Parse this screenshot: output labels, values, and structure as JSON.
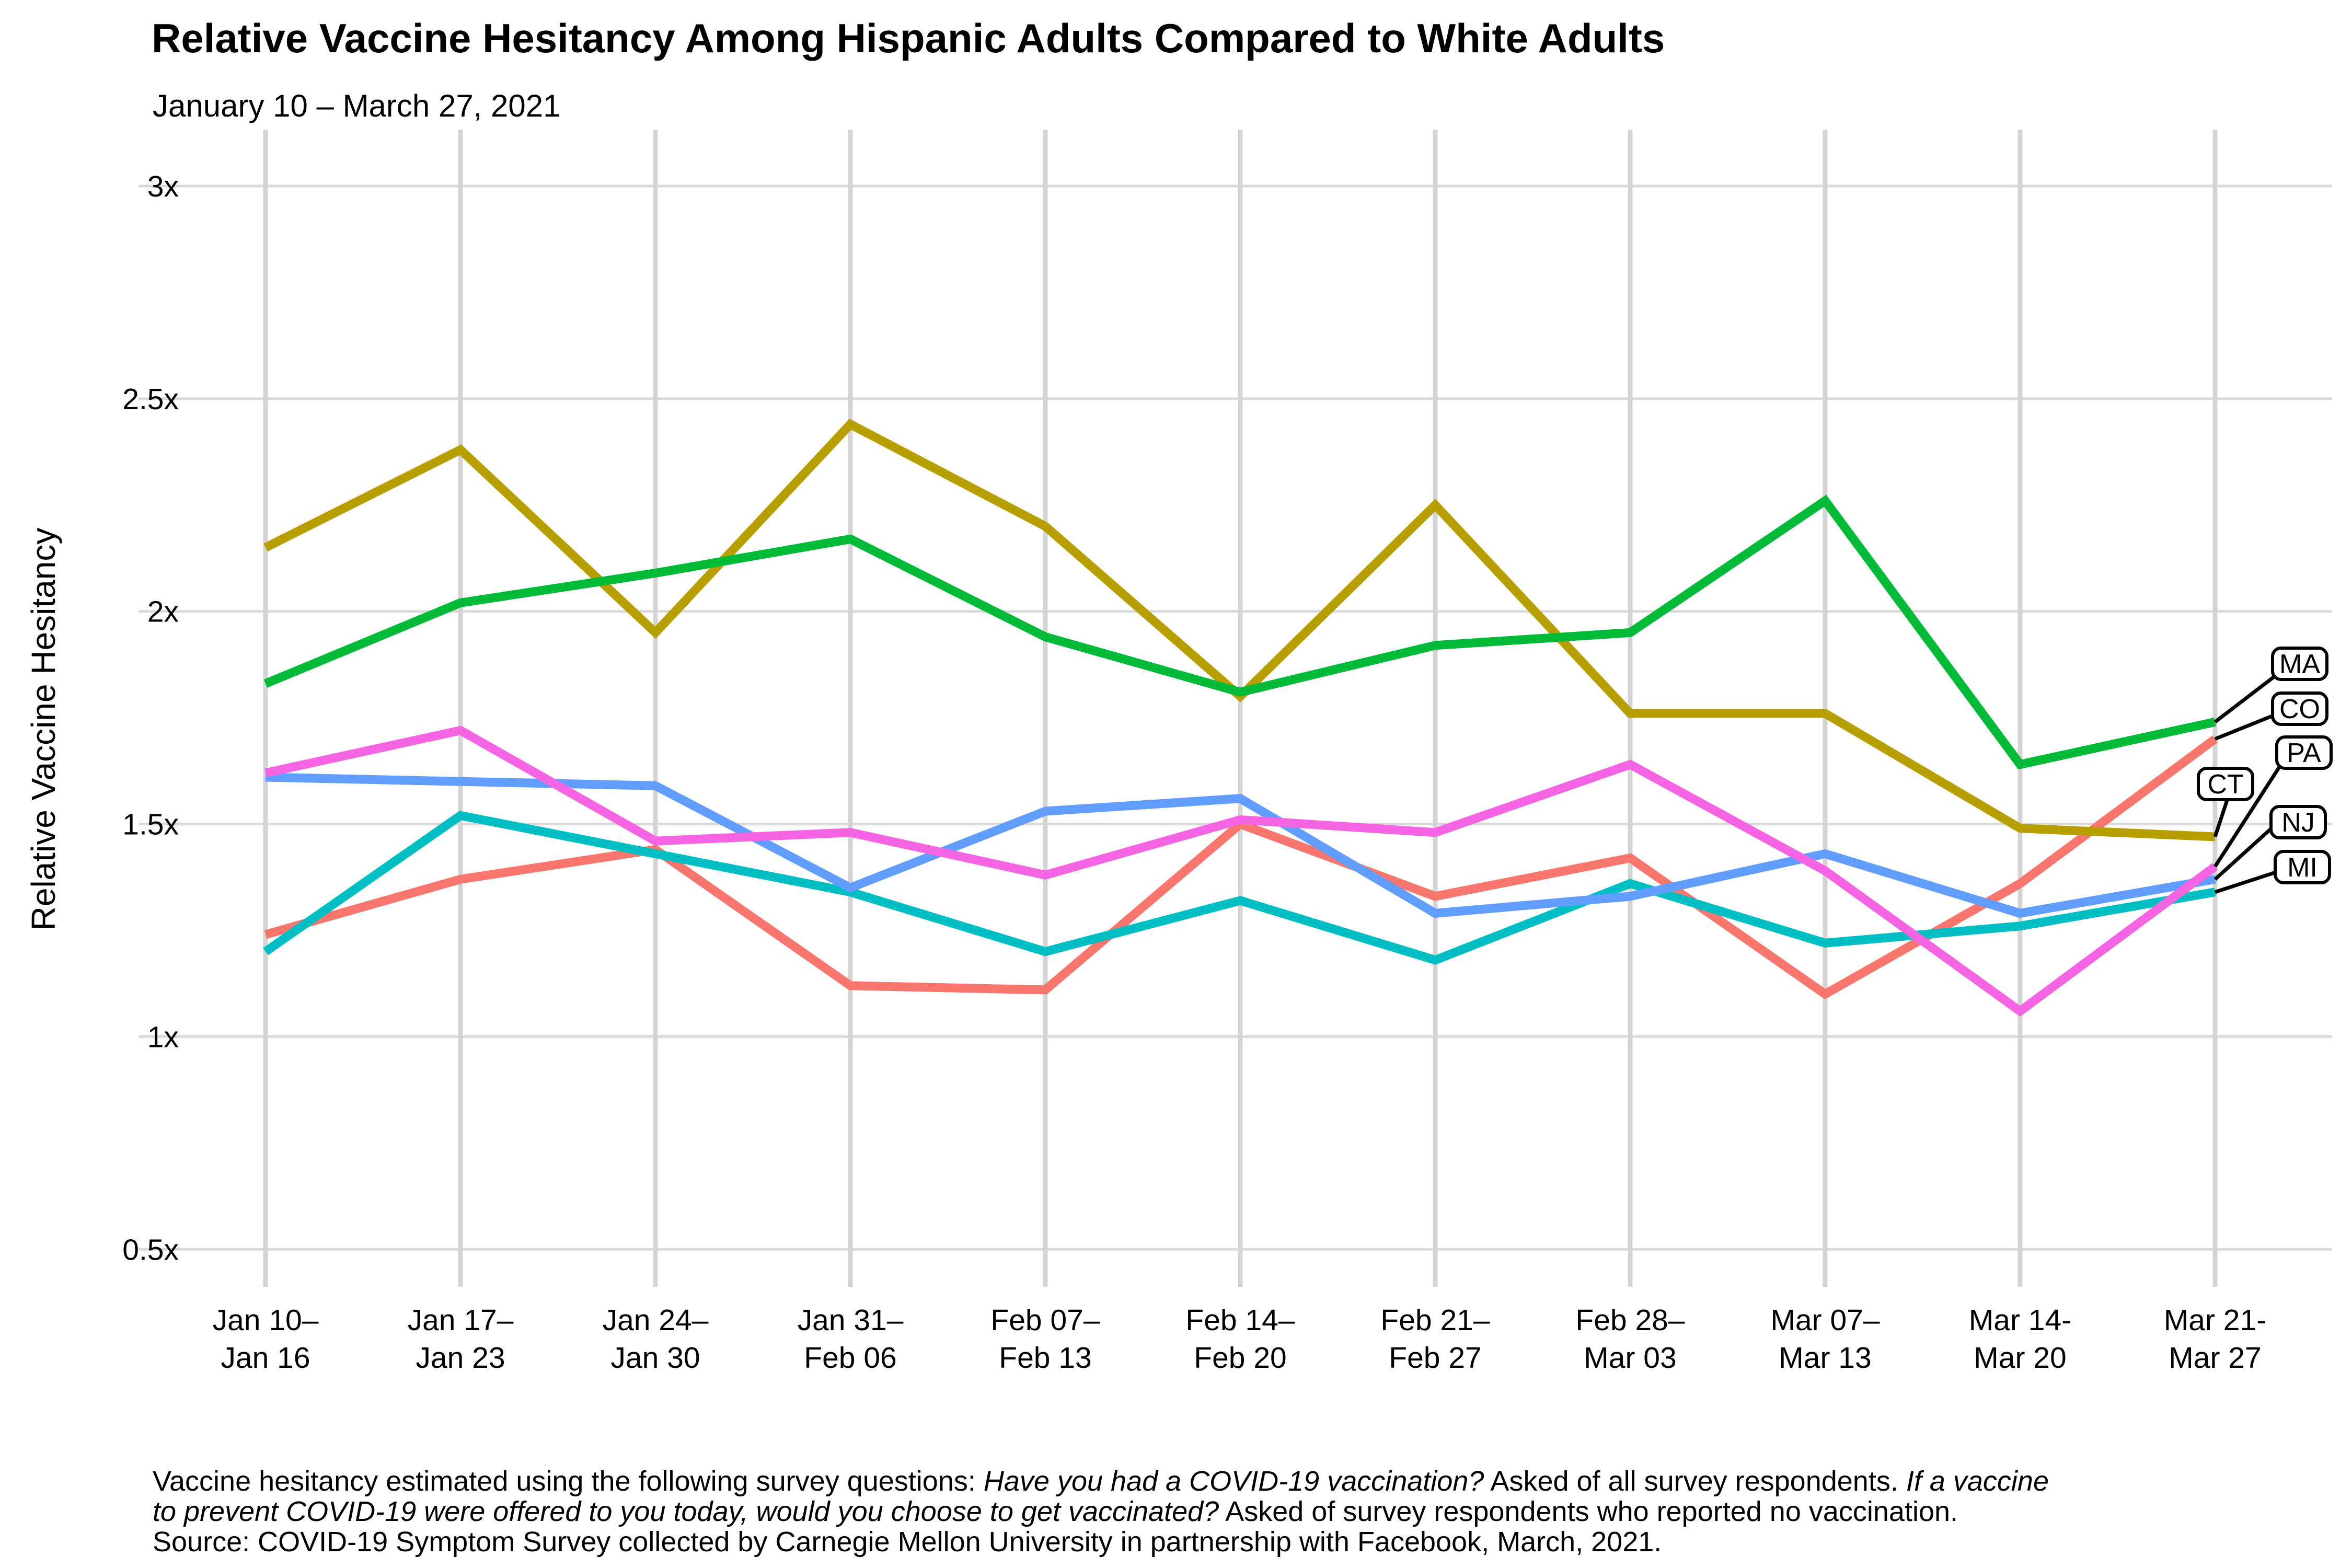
{
  "header": {
    "title": "Relative Vaccine Hesitancy Among Hispanic Adults Compared to White Adults",
    "subtitle": "January 10 – March 27, 2021"
  },
  "chart_data": {
    "type": "line",
    "title": "Relative Vaccine Hesitancy Among Hispanic Adults Compared to White Adults",
    "subtitle": "January 10 – March 27, 2021",
    "xlabel": "",
    "ylabel": "Relative Vaccine Hesitancy",
    "ylim": [
      0.5,
      3.0
    ],
    "grid": true,
    "legend_position": "right-direct-labels",
    "y_ticks": [
      {
        "value": 3.0,
        "label": "3x"
      },
      {
        "value": 2.5,
        "label": "2.5x"
      },
      {
        "value": 2.0,
        "label": "2x"
      },
      {
        "value": 1.5,
        "label": "1.5x"
      },
      {
        "value": 1.0,
        "label": "1x"
      },
      {
        "value": 0.5,
        "label": "0.5x"
      }
    ],
    "x_tick_labels": [
      {
        "line1": "Jan 10–",
        "line2": "Jan 16"
      },
      {
        "line1": "Jan 17–",
        "line2": "Jan 23"
      },
      {
        "line1": "Jan 24–",
        "line2": "Jan 30"
      },
      {
        "line1": "Jan 31–",
        "line2": "Feb 06"
      },
      {
        "line1": "Feb 07–",
        "line2": "Feb 13"
      },
      {
        "line1": "Feb 14–",
        "line2": "Feb 20"
      },
      {
        "line1": "Feb 21–",
        "line2": "Feb 27"
      },
      {
        "line1": "Feb 28–",
        "line2": "Mar 03"
      },
      {
        "line1": "Mar 07–",
        "line2": "Mar 13"
      },
      {
        "line1": "Mar 14-",
        "line2": "Mar 20"
      },
      {
        "line1": "Mar 21-",
        "line2": "Mar 27"
      }
    ],
    "series": [
      {
        "name": "CO",
        "color": "#F8766D",
        "values": [
          1.24,
          1.37,
          1.44,
          1.12,
          1.11,
          1.5,
          1.33,
          1.42,
          1.1,
          1.36,
          1.7
        ]
      },
      {
        "name": "CT",
        "color": "#B79F00",
        "values": [
          2.15,
          2.38,
          1.95,
          2.44,
          2.2,
          1.8,
          2.25,
          1.76,
          1.76,
          1.49,
          1.47
        ]
      },
      {
        "name": "MA",
        "color": "#00BA38",
        "values": [
          1.83,
          2.02,
          2.09,
          2.17,
          1.94,
          1.81,
          1.92,
          1.95,
          2.26,
          1.64,
          1.74
        ]
      },
      {
        "name": "MI",
        "color": "#00BFC4",
        "values": [
          1.2,
          1.52,
          1.43,
          1.34,
          1.2,
          1.32,
          1.18,
          1.36,
          1.22,
          1.26,
          1.34
        ]
      },
      {
        "name": "NJ",
        "color": "#619CFF",
        "values": [
          1.61,
          1.6,
          1.59,
          1.35,
          1.53,
          1.56,
          1.29,
          1.33,
          1.43,
          1.29,
          1.37
        ]
      },
      {
        "name": "PA",
        "color": "#F564E3",
        "values": [
          1.62,
          1.72,
          1.46,
          1.48,
          1.38,
          1.51,
          1.48,
          1.64,
          1.39,
          1.06,
          1.4
        ]
      }
    ],
    "direct_labels": [
      "MA",
      "CO",
      "PA",
      "CT",
      "NJ",
      "MI"
    ]
  },
  "style": {
    "grid_color_h": "#d9d9d9",
    "grid_color_v": "#d4d4d4",
    "label_box_stroke": "#000000",
    "label_box_fill": "#ffffff"
  },
  "footer": {
    "lines": [
      [
        {
          "text": "Vaccine hesitancy estimated using the following survey questions: ",
          "italic": false
        },
        {
          "text": "Have you had a COVID-19 vaccination?",
          "italic": true
        },
        {
          "text": " Asked of all survey respondents. ",
          "italic": false
        },
        {
          "text": "If a vaccine",
          "italic": true
        }
      ],
      [
        {
          "text": "to prevent COVID-19 were offered to you today, would you choose to get vaccinated?",
          "italic": true
        },
        {
          "text": " Asked of survey respondents who reported no vaccination.",
          "italic": false
        }
      ],
      [
        {
          "text": "Source: COVID-19 Symptom Survey collected by Carnegie Mellon University in partnership with Facebook, March, 2021.",
          "italic": false
        }
      ]
    ]
  }
}
